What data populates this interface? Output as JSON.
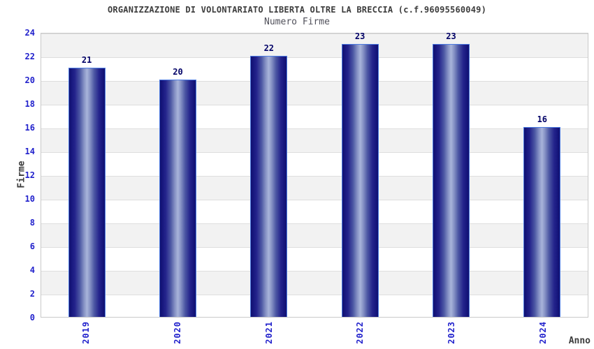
{
  "chart_data": {
    "type": "bar",
    "title": "ORGANIZZAZIONE DI VOLONTARIATO LIBERTA OLTRE LA BRECCIA (c.f.96095560049)",
    "subtitle": "Numero Firme",
    "categories": [
      "2019",
      "2020",
      "2021",
      "2022",
      "2023",
      "2024"
    ],
    "values": [
      21,
      20,
      22,
      23,
      23,
      16
    ],
    "xlabel": "Anno",
    "ylabel": "Firme",
    "ylim": [
      0,
      24
    ],
    "yticks": [
      0,
      2,
      4,
      6,
      8,
      10,
      12,
      14,
      16,
      18,
      20,
      22,
      24
    ],
    "grid": "horizontal-bands-alternating",
    "legend_position": "none",
    "colors": {
      "bar_edge_dark": "#11116f",
      "bar_center_light": "#a8b4da",
      "bar_border": "#4d7ce2",
      "tick_label": "#2222cc",
      "value_label": "#000066",
      "axis_label": "#3c3c3c",
      "band_gray": "#f2f2f2",
      "band_white": "#ffffff",
      "plot_border": "#c9c9c9"
    }
  }
}
